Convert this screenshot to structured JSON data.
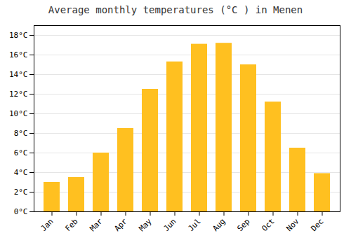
{
  "chart_data": {
    "type": "bar",
    "title": "Average monthly temperatures (°C ) in Menen",
    "categories": [
      "Jan",
      "Feb",
      "Mar",
      "Apr",
      "May",
      "Jun",
      "Jul",
      "Aug",
      "Sep",
      "Oct",
      "Nov",
      "Dec"
    ],
    "values": [
      3.0,
      3.5,
      6.0,
      8.5,
      12.5,
      15.3,
      17.1,
      17.2,
      15.0,
      11.2,
      6.5,
      3.9
    ],
    "color": "#FFC020",
    "ylim": [
      0,
      19
    ],
    "yticks": [
      {
        "value": 0,
        "label": "0°C"
      },
      {
        "value": 2,
        "label": "2°C"
      },
      {
        "value": 4,
        "label": "4°C"
      },
      {
        "value": 6,
        "label": "6°C"
      },
      {
        "value": 8,
        "label": "8°C"
      },
      {
        "value": 10,
        "label": "10°C"
      },
      {
        "value": 12,
        "label": "12°C"
      },
      {
        "value": 14,
        "label": "14°C"
      },
      {
        "value": 16,
        "label": "16°C"
      },
      {
        "value": 18,
        "label": "18°C"
      }
    ],
    "grid": true
  }
}
